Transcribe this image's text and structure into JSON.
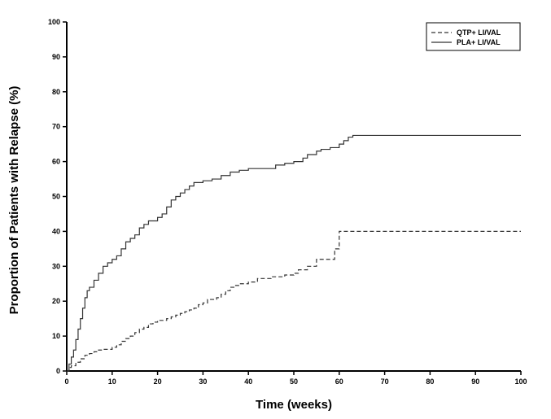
{
  "chart_data": {
    "type": "line",
    "step": true,
    "xlabel": "Time (weeks)",
    "ylabel": "Proportion of Patients with Relapse (%)",
    "xlim": [
      0,
      100
    ],
    "ylim": [
      0,
      100
    ],
    "xticks": [
      "0",
      "10",
      "20",
      "30",
      "40",
      "50",
      "60",
      "70",
      "80",
      "90",
      "100"
    ],
    "yticks": [
      "0",
      "10",
      "20",
      "30",
      "40",
      "50",
      "60",
      "70",
      "80",
      "90",
      "100"
    ],
    "grid": false,
    "legend_position": "top-right",
    "series": [
      {
        "name": "QTP+ LI/VAL",
        "line_style": "dashed",
        "color": "#333333",
        "x": [
          0,
          0.5,
          1,
          2,
          3,
          4,
          5,
          6,
          7,
          8,
          10,
          11,
          12,
          13,
          14,
          15,
          16,
          17,
          18,
          19,
          20,
          22,
          23,
          24,
          25,
          26,
          27,
          28,
          29,
          30,
          31,
          33,
          34,
          35,
          36,
          37,
          38,
          40,
          42,
          45,
          48,
          50,
          51,
          53,
          55,
          56,
          59,
          60,
          100
        ],
        "y": [
          0,
          1,
          1.5,
          2.5,
          3.5,
          4.5,
          5,
          5.5,
          6,
          6.2,
          6.8,
          7.5,
          8.5,
          9.3,
          10,
          11,
          12,
          12.5,
          13.5,
          14,
          14.5,
          15,
          15.5,
          16,
          16.5,
          17,
          17.5,
          18,
          19,
          19.5,
          20.5,
          21,
          22,
          23,
          24,
          24.5,
          25,
          25.5,
          26.5,
          27,
          27.5,
          28,
          29,
          30,
          32,
          32,
          35,
          40,
          40
        ]
      },
      {
        "name": "PLA+ LI/VAL",
        "line_style": "solid",
        "color": "#333333",
        "x": [
          0,
          0.5,
          1,
          1.5,
          2,
          2.5,
          3,
          3.5,
          4,
          4.5,
          5,
          6,
          7,
          8,
          9,
          10,
          11,
          12,
          13,
          14,
          15,
          16,
          17,
          18,
          19,
          20,
          21,
          22,
          23,
          24,
          25,
          26,
          27,
          28,
          30,
          32,
          34,
          36,
          38,
          40,
          45,
          46,
          48,
          50,
          52,
          53,
          55,
          56,
          58,
          60,
          61,
          62,
          63,
          100
        ],
        "y": [
          0,
          2,
          4,
          6,
          9,
          12,
          15,
          18,
          21,
          23,
          24,
          26,
          28,
          30,
          31,
          32,
          33,
          35,
          37,
          38,
          39,
          41,
          42,
          43,
          43,
          44,
          45,
          47,
          49,
          50,
          51,
          52,
          53,
          54,
          54.5,
          55,
          56,
          57,
          57.5,
          58,
          58,
          59,
          59.5,
          60,
          61,
          62,
          63,
          63.5,
          64,
          65,
          66,
          67,
          67.5,
          67.5
        ]
      }
    ]
  }
}
